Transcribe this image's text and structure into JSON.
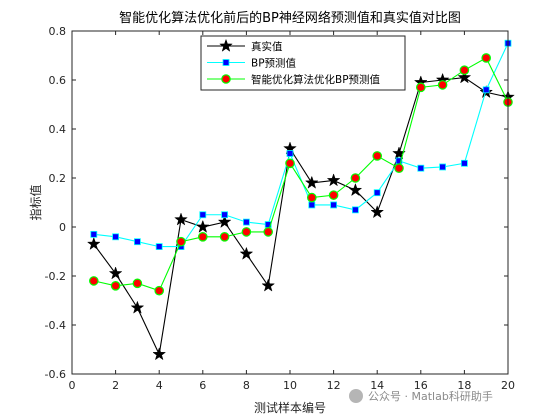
{
  "chart_data": {
    "type": "line",
    "title": "智能优化算法优化前后的BP神经网络预测值和真实值对比图",
    "xlabel": "测试样本编号",
    "ylabel": "指标值",
    "xlim": [
      0,
      20
    ],
    "ylim": [
      -0.6,
      0.8
    ],
    "xticks": [
      0,
      2,
      4,
      6,
      8,
      10,
      12,
      14,
      16,
      18,
      20
    ],
    "yticks": [
      -0.6,
      -0.4,
      -0.2,
      0,
      0.2,
      0.4,
      0.6,
      0.8
    ],
    "ytick_labels": [
      "-0.6",
      "-0.4",
      "-0.2",
      "0",
      "0.2",
      "0.4",
      "0.6",
      "0.8"
    ],
    "grid": false,
    "legend_position": "top-center",
    "x": [
      1,
      2,
      3,
      4,
      5,
      6,
      7,
      8,
      9,
      10,
      11,
      12,
      13,
      14,
      15,
      16,
      17,
      18,
      19,
      20
    ],
    "series": [
      {
        "name": "真实值",
        "color": "#000000",
        "marker": "star",
        "values": [
          -0.07,
          -0.19,
          -0.33,
          -0.52,
          0.03,
          0.0,
          0.02,
          -0.11,
          -0.24,
          0.32,
          0.18,
          0.19,
          0.15,
          0.06,
          0.3,
          0.59,
          0.6,
          0.61,
          0.55,
          0.53
        ]
      },
      {
        "name": "BP预测值",
        "color": "#00ffff",
        "marker": "square",
        "markerColor": "#0000ff",
        "values": [
          -0.03,
          -0.04,
          -0.06,
          -0.08,
          -0.08,
          0.05,
          0.05,
          0.02,
          0.01,
          0.3,
          0.09,
          0.09,
          0.07,
          0.14,
          0.27,
          0.24,
          0.245,
          0.26,
          0.56,
          0.75
        ]
      },
      {
        "name": "智能优化算法优化BP预测值",
        "color": "#00ff00",
        "marker": "circle",
        "markerColor": "#ff0000",
        "values": [
          -0.22,
          -0.24,
          -0.23,
          -0.26,
          -0.06,
          -0.04,
          -0.04,
          -0.02,
          -0.02,
          0.26,
          0.12,
          0.13,
          0.2,
          0.29,
          0.24,
          0.57,
          0.58,
          0.64,
          0.69,
          0.51
        ]
      }
    ]
  },
  "watermark": {
    "text": "公众号 · Matlab科研助手"
  }
}
